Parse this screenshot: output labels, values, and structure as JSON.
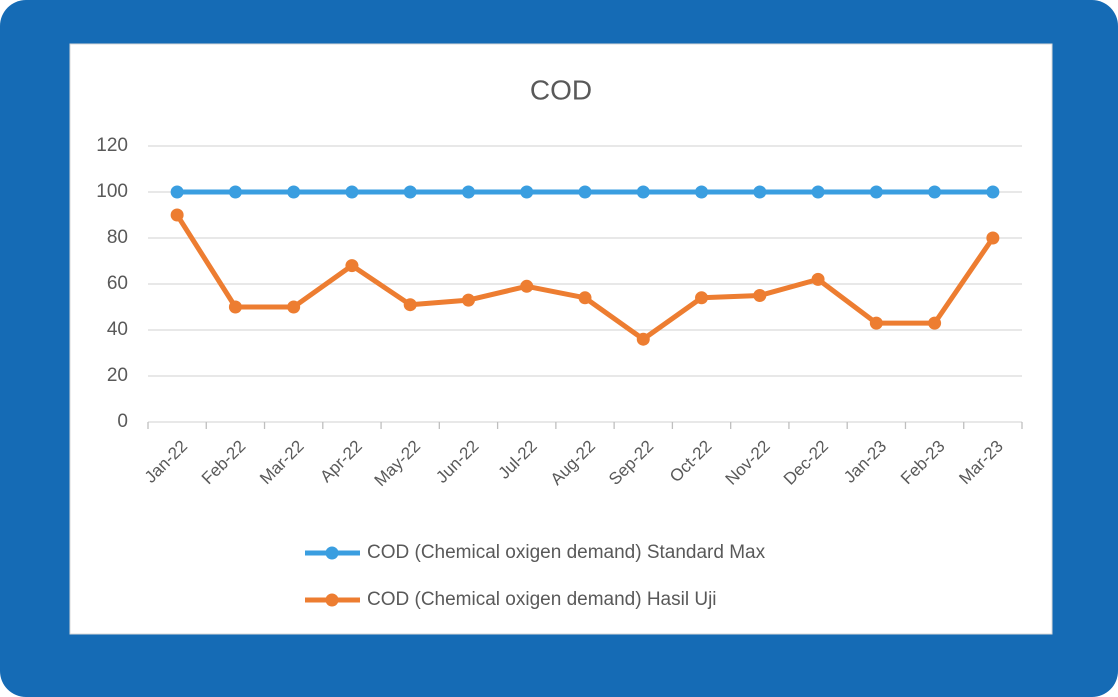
{
  "chart_data": {
    "type": "line",
    "title": "COD",
    "categories": [
      "Jan-22",
      "Feb-22",
      "Mar-22",
      "Apr-22",
      "May-22",
      "Jun-22",
      "Jul-22",
      "Aug-22",
      "Sep-22",
      "Oct-22",
      "Nov-22",
      "Dec-22",
      "Jan-23",
      "Feb-23",
      "Mar-23"
    ],
    "series": [
      {
        "name": "COD (Chemical oxigen demand) Standard Max",
        "color": "#3a9ee0",
        "values": [
          100,
          100,
          100,
          100,
          100,
          100,
          100,
          100,
          100,
          100,
          100,
          100,
          100,
          100,
          100
        ]
      },
      {
        "name": "COD (Chemical oxigen demand) Hasil Uji",
        "color": "#ed7d31",
        "values": [
          90,
          50,
          50,
          68,
          51,
          53,
          59,
          54,
          36,
          54,
          55,
          62,
          43,
          43,
          80
        ]
      }
    ],
    "ylim": [
      0,
      120
    ],
    "yticks": [
      0,
      20,
      40,
      60,
      80,
      100,
      120
    ],
    "grid": true,
    "legend": "bottom"
  }
}
